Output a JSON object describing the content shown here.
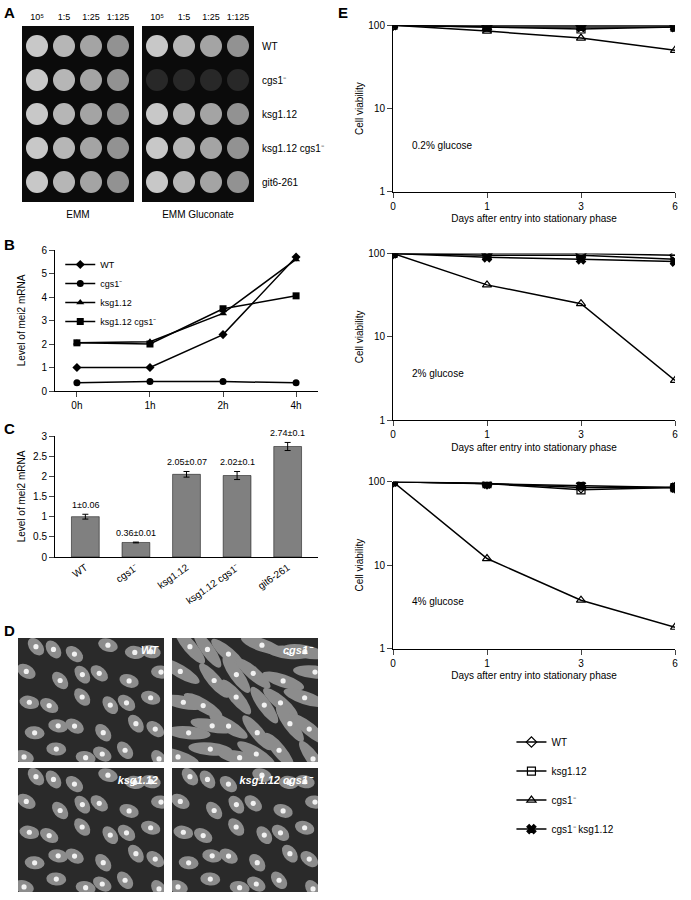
{
  "panel_labels": [
    "A",
    "B",
    "C",
    "D",
    "E"
  ],
  "spot_assay": {
    "dilutions": [
      "10⁵",
      "1:5",
      "1:25",
      "1:125"
    ],
    "strains": [
      "WT",
      "cgs1⁻",
      "ksg1.12",
      "ksg1.12 cgs1⁻",
      "git6-261"
    ],
    "plates": [
      {
        "medium": "EMM",
        "growth": [
          [
            true,
            true,
            true,
            true
          ],
          [
            true,
            true,
            true,
            true
          ],
          [
            true,
            true,
            true,
            true
          ],
          [
            true,
            true,
            true,
            true
          ],
          [
            true,
            true,
            true,
            true
          ]
        ]
      },
      {
        "medium": "EMM Gluconate",
        "growth": [
          [
            true,
            true,
            true,
            true
          ],
          [
            false,
            false,
            false,
            false
          ],
          [
            true,
            true,
            true,
            true
          ],
          [
            true,
            true,
            true,
            true
          ],
          [
            true,
            true,
            true,
            true
          ]
        ]
      }
    ]
  },
  "micrographs": {
    "strains": [
      "WT",
      "cgs1⁻",
      "ksg1.12",
      "ksg1.12 cgs1⁻"
    ]
  },
  "chart_data": [
    {
      "type": "line",
      "y_label": "Level of mei2 mRNA",
      "categories": [
        "0h",
        "1h",
        "2h",
        "4h"
      ],
      "ylim": [
        0,
        6
      ],
      "yticks": [
        0,
        1,
        2,
        3,
        4,
        5,
        6
      ],
      "legend": "top-left",
      "series": [
        {
          "name": "WT",
          "color": "#000000",
          "marker": "diamond",
          "values": [
            1.0,
            1.0,
            2.4,
            5.7
          ]
        },
        {
          "name": "cgs1⁻",
          "color": "#000000",
          "marker": "circle",
          "values": [
            0.35,
            0.4,
            0.4,
            0.35
          ]
        },
        {
          "name": "ksg1.12",
          "color": "#000000",
          "marker": "triangle-up",
          "values": [
            2.05,
            2.1,
            3.3,
            5.6
          ]
        },
        {
          "name": "ksg1.12 cgs1⁻",
          "color": "#000000",
          "marker": "square",
          "values": [
            2.05,
            2.0,
            3.5,
            4.05
          ]
        }
      ]
    },
    {
      "type": "bar",
      "y_label": "Level of mei2 mRNA",
      "categories": [
        "WT",
        "cgs1⁻",
        "ksg1.12",
        "ksg1.12 cgs1⁻",
        "git6-261"
      ],
      "values": [
        1,
        0.36,
        2.05,
        2.02,
        2.74
      ],
      "errors": [
        0.06,
        0.01,
        0.07,
        0.1,
        0.1
      ],
      "value_labels": [
        "1±0.06",
        "0.36±0.01",
        "2.05±0.07",
        "2.02±0.1",
        "2.74±0.1"
      ],
      "data_labels": true,
      "color": "#808080",
      "ylim": [
        0,
        3
      ],
      "yticks": [
        0,
        0.5,
        1,
        1.5,
        2,
        2.5,
        3
      ]
    },
    {
      "type": "line",
      "log": "y",
      "annotation": "0.2% glucose",
      "x_label": "Days after entry into stationary phase",
      "y_label": "Cell viability",
      "categories": [
        "0",
        "1",
        "3",
        "6"
      ],
      "ylim": [
        1,
        100
      ],
      "yticks": [
        1,
        10,
        100
      ],
      "legend": "bottom",
      "series": [
        {
          "name": "WT",
          "color": "#000000",
          "marker": "diamond-open",
          "values": [
            100,
            100,
            100,
            100
          ]
        },
        {
          "name": "ksg1.12",
          "color": "#000000",
          "marker": "square-open",
          "values": [
            100,
            95,
            90,
            95
          ]
        },
        {
          "name": "cgs1⁻",
          "color": "#000000",
          "marker": "triangle-up-open",
          "values": [
            100,
            85,
            70,
            50
          ]
        },
        {
          "name": "cgs1⁻ ksg1.12",
          "color": "#000000",
          "marker": "x",
          "values": [
            100,
            95,
            95,
            95
          ]
        }
      ]
    },
    {
      "type": "line",
      "log": "y",
      "annotation": "2% glucose",
      "x_label": "Days after entry into stationary phase",
      "y_label": "Cell viability",
      "categories": [
        "0",
        "1",
        "3",
        "6"
      ],
      "ylim": [
        1,
        100
      ],
      "yticks": [
        1,
        10,
        100
      ],
      "legend": "bottom",
      "series": [
        {
          "name": "WT",
          "color": "#000000",
          "marker": "diamond-open",
          "values": [
            100,
            100,
            100,
            95
          ]
        },
        {
          "name": "ksg1.12",
          "color": "#000000",
          "marker": "square-open",
          "values": [
            100,
            95,
            95,
            85
          ]
        },
        {
          "name": "cgs1⁻",
          "color": "#000000",
          "marker": "triangle-up-open",
          "values": [
            100,
            42,
            25,
            3
          ]
        },
        {
          "name": "cgs1⁻ ksg1.12",
          "color": "#000000",
          "marker": "x",
          "values": [
            100,
            90,
            85,
            80
          ]
        }
      ]
    },
    {
      "type": "line",
      "log": "y",
      "annotation": "4% glucose",
      "x_label": "Days after entry into stationary phase",
      "y_label": "Cell viability",
      "categories": [
        "0",
        "1",
        "3",
        "6"
      ],
      "ylim": [
        1,
        100
      ],
      "yticks": [
        1,
        10,
        100
      ],
      "legend": "bottom",
      "series": [
        {
          "name": "WT",
          "color": "#000000",
          "marker": "diamond-open",
          "values": [
            100,
            95,
            85,
            85
          ]
        },
        {
          "name": "ksg1.12",
          "color": "#000000",
          "marker": "square-open",
          "values": [
            100,
            95,
            80,
            85
          ]
        },
        {
          "name": "cgs1⁻",
          "color": "#000000",
          "marker": "triangle-up-open",
          "values": [
            100,
            12,
            3.8,
            1.8
          ]
        },
        {
          "name": "cgs1⁻ ksg1.12",
          "color": "#000000",
          "marker": "x",
          "values": [
            100,
            95,
            90,
            85
          ]
        }
      ]
    }
  ]
}
